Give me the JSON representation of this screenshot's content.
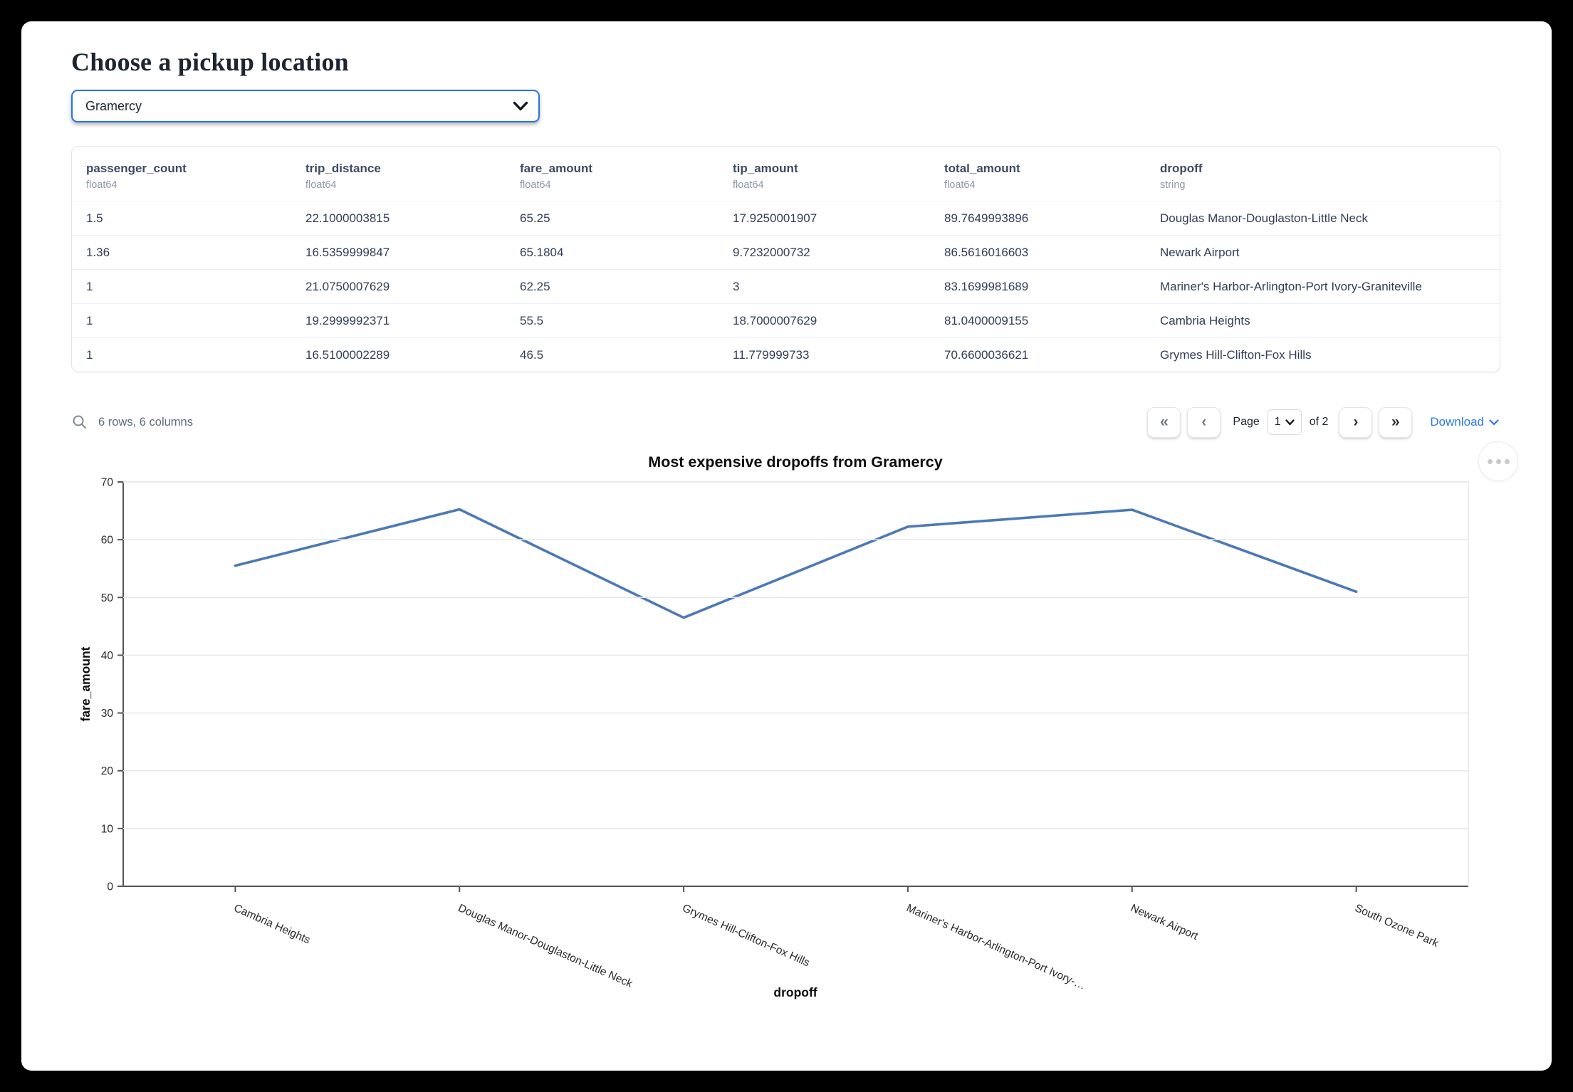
{
  "header": {
    "title": "Choose a pickup location"
  },
  "pickup_select": {
    "value": "Gramercy"
  },
  "table": {
    "columns": [
      {
        "name": "passenger_count",
        "dtype": "float64"
      },
      {
        "name": "trip_distance",
        "dtype": "float64"
      },
      {
        "name": "fare_amount",
        "dtype": "float64"
      },
      {
        "name": "tip_amount",
        "dtype": "float64"
      },
      {
        "name": "total_amount",
        "dtype": "float64"
      },
      {
        "name": "dropoff",
        "dtype": "string"
      }
    ],
    "rows": [
      [
        "1.5",
        "22.1000003815",
        "65.25",
        "17.9250001907",
        "89.7649993896",
        "Douglas Manor-Douglaston-Little Neck"
      ],
      [
        "1.36",
        "16.5359999847",
        "65.1804",
        "9.7232000732",
        "86.5616016603",
        "Newark Airport"
      ],
      [
        "1",
        "21.0750007629",
        "62.25",
        "3",
        "83.1699981689",
        "Mariner's Harbor-Arlington-Port Ivory-Graniteville"
      ],
      [
        "1",
        "19.2999992371",
        "55.5",
        "18.7000007629",
        "81.0400009155",
        "Cambria Heights"
      ],
      [
        "1",
        "16.5100002289",
        "46.5",
        "11.779999733",
        "70.6600036621",
        "Grymes Hill-Clifton-Fox Hills"
      ]
    ]
  },
  "table_footer": {
    "summary": "6 rows, 6 columns",
    "page_label": "Page",
    "page_value": "1",
    "of_label": "of",
    "pages_total": "2",
    "download_label": "Download"
  },
  "icons": {
    "first_page": "«",
    "prev_page": "‹",
    "next_page": "›",
    "last_page": "»"
  },
  "colors": {
    "accent_blue": "#2b79e3",
    "select_border": "#2576e0",
    "line": "#4c79b5",
    "grid": "#e7e7e7"
  },
  "chart_data": {
    "type": "line",
    "title": "Most expensive dropoffs from Gramercy",
    "xlabel": "dropoff",
    "ylabel": "fare_amount",
    "categories": [
      "Cambria Heights",
      "Douglas Manor-Douglaston-Little Neck",
      "Grymes Hill-Clifton-Fox Hills",
      "Mariner's Harbor-Arlington-Port Ivory-…",
      "Newark Airport",
      "South Ozone Park"
    ],
    "values": [
      55.5,
      65.25,
      46.5,
      62.25,
      65.1804,
      51
    ],
    "ylim": [
      0,
      70
    ],
    "yticks": [
      0,
      10,
      20,
      30,
      40,
      50,
      60,
      70
    ],
    "grid": true,
    "legend": "none",
    "line_color": "#4c79b5"
  }
}
